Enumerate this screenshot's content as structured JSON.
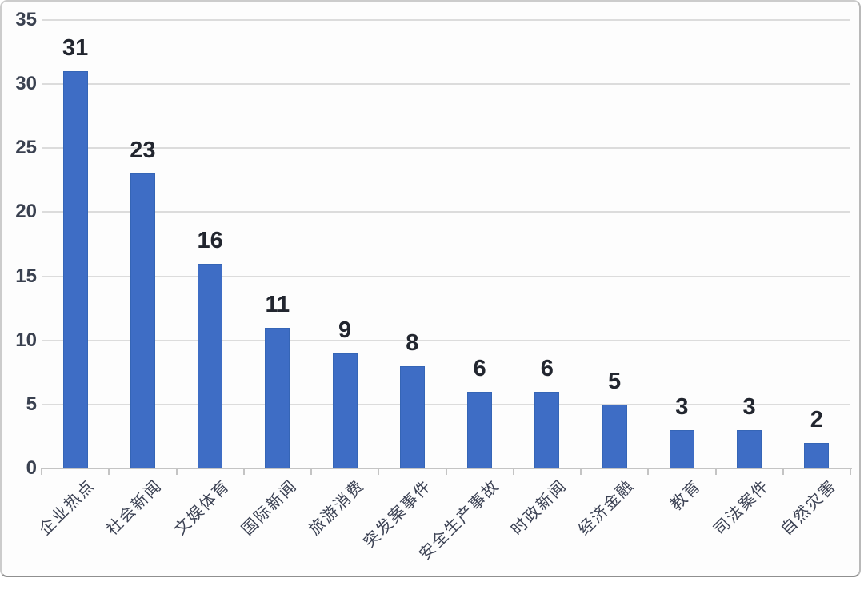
{
  "chart_data": {
    "type": "bar",
    "title": "",
    "xlabel": "",
    "ylabel": "",
    "categories": [
      "企业热点",
      "社会新闻",
      "文娱体育",
      "国际新闻",
      "旅游消费",
      "突发案事件",
      "安全生产事故",
      "时政新闻",
      "经济金融",
      "教育",
      "司法案件",
      "自然灾害"
    ],
    "values": [
      31,
      23,
      16,
      11,
      9,
      8,
      6,
      6,
      5,
      3,
      3,
      2
    ],
    "data_labels": [
      "31",
      "23",
      "16",
      "11",
      "9",
      "8",
      "6",
      "6",
      "5",
      "3",
      "3",
      "2"
    ],
    "ylim": [
      0,
      35
    ],
    "yticks": [
      0,
      5,
      10,
      15,
      20,
      25,
      30,
      35
    ],
    "grid": true,
    "legend": false,
    "bar_color": "#3e6dc5",
    "bar_border_color": "#3565b6",
    "gridline_color": "#dcdcdc",
    "axis_color": "#c4c4c4",
    "value_label_color": "#22262f",
    "ytick_label_color": "#3a4150",
    "xtick_label_color": "#3c4254",
    "x_label_rotation_deg": -45
  }
}
